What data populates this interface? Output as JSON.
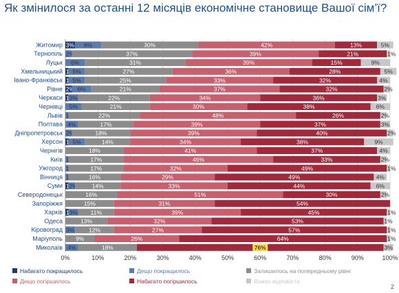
{
  "page": {
    "title": "Як змінилося за останні 12 місяців економічне становище Вашої сім’ї?",
    "page_number": "2"
  },
  "chart_data": {
    "type": "bar",
    "orientation": "horizontal",
    "stacked": true,
    "xlim": [
      0,
      100
    ],
    "x_ticks": [
      "0%",
      "10%",
      "20%",
      "30%",
      "40%",
      "50%",
      "60%",
      "70%",
      "80%",
      "90%",
      "100%"
    ],
    "legend_position": "bottom",
    "categories": [
      "Житомир",
      "Тернопіль",
      "Луцьк",
      "Хмельницький",
      "Івано-Франківськ",
      "Рівне",
      "Черкаси",
      "Чернівці",
      "Львів",
      "Полтава",
      "Дніпропетровськ",
      "Херсон",
      "Чернігів",
      "Київ",
      "Ужгород",
      "Вінниця",
      "Суми",
      "Севeродонецьк",
      "Запоріжжя",
      "Харків",
      "Одеса",
      "Кіровоград",
      "Маріуполь",
      "Миколаїв"
    ],
    "series": [
      {
        "name": "Набагато покращилось",
        "color": "#1f3b6b",
        "values": [
          3,
          0,
          0,
          1,
          1,
          2,
          1,
          0,
          0,
          0,
          0,
          1,
          0,
          0,
          0,
          0,
          1,
          0,
          0,
          1,
          0,
          0,
          0,
          0
        ],
        "labels": [
          "3%",
          "",
          "",
          "1%",
          "1%",
          "2%",
          "1%",
          "",
          "",
          "",
          "",
          "1%",
          "",
          "",
          "",
          "",
          "1%",
          "",
          "",
          "1%",
          "",
          "",
          "",
          ""
        ]
      },
      {
        "name": "Дещо покращилось",
        "color": "#5b7bb0",
        "values": [
          8,
          2,
          6,
          5,
          5,
          6,
          3,
          5,
          1,
          4,
          2,
          5,
          0,
          1,
          1,
          1,
          2,
          0,
          0,
          3,
          0,
          3,
          0,
          4
        ],
        "labels": [
          "8%",
          "2%",
          "6%",
          "5%",
          "5%",
          "6%",
          "3%",
          "5%",
          "1%",
          "4%",
          "2%",
          "5%",
          "",
          "1%",
          "1%",
          "1%",
          "2%",
          "",
          "",
          "3%",
          "",
          "3%",
          "",
          "4%"
        ]
      },
      {
        "name": "Залишилось на попередньому рівні",
        "color": "#8c8c8c",
        "values": [
          30,
          37,
          31,
          27,
          25,
          21,
          22,
          21,
          22,
          17,
          18,
          14,
          18,
          17,
          17,
          16,
          14,
          16,
          15,
          11,
          13,
          12,
          9,
          18
        ],
        "labels": [
          "30%",
          "37%",
          "31%",
          "27%",
          "25%",
          "21%",
          "22%",
          "21%",
          "22%",
          "17%",
          "18%",
          "14%",
          "18%",
          "17%",
          "17%",
          "16%",
          "14%",
          "16%",
          "15%",
          "11%",
          "13%",
          "12%",
          "9%",
          "18%"
        ]
      },
      {
        "name": "Дещо погіршилось",
        "color": "#c95f6c",
        "values": [
          42,
          39,
          39,
          36,
          33,
          37,
          34,
          30,
          48,
          39,
          39,
          34,
          41,
          46,
          32,
          29,
          33,
          51,
          31,
          39,
          32,
          27,
          26,
          0
        ],
        "labels": [
          "42%",
          "39%",
          "39%",
          "36%",
          "33%",
          "37%",
          "34%",
          "30%",
          "48%",
          "39%",
          "39%",
          "34%",
          "41%",
          "46%",
          "32%",
          "29%",
          "33%",
          "51%",
          "31%",
          "39%",
          "32%",
          "27%",
          "26%",
          ""
        ]
      },
      {
        "name": "Набагато погіршилось",
        "color": "#a3283a",
        "values": [
          13,
          21,
          15,
          28,
          32,
          32,
          36,
          38,
          26,
          37,
          40,
          38,
          37,
          33,
          49,
          49,
          44,
          30,
          54,
          45,
          53,
          57,
          64,
          76
        ],
        "labels": [
          "13%",
          "21%",
          "15%",
          "28%",
          "32%",
          "32%",
          "36%",
          "38%",
          "26%",
          "37%",
          "40%",
          "38%",
          "37%",
          "33%",
          "49%",
          "49%",
          "44%",
          "30%",
          "54%",
          "45%",
          "53%",
          "57%",
          "64%",
          "76%"
        ]
      },
      {
        "name": "Важко відповісти",
        "color": "#c8c8c8",
        "values": [
          5,
          1,
          9,
          5,
          4,
          2,
          3,
          6,
          2,
          3,
          2,
          9,
          4,
          2,
          1,
          4,
          6,
          2,
          0,
          1,
          1,
          1,
          1,
          3
        ],
        "labels": [
          "5%",
          "1%",
          "9%",
          "5%",
          "4%",
          "2%",
          "3%",
          "6%",
          "2%",
          "3%",
          "2%",
          "9%",
          "4%",
          "2%",
          "1%",
          "4%",
          "6%",
          "2%",
          "",
          "1%",
          "1%",
          "1%",
          "1%",
          "3%"
        ]
      }
    ]
  }
}
